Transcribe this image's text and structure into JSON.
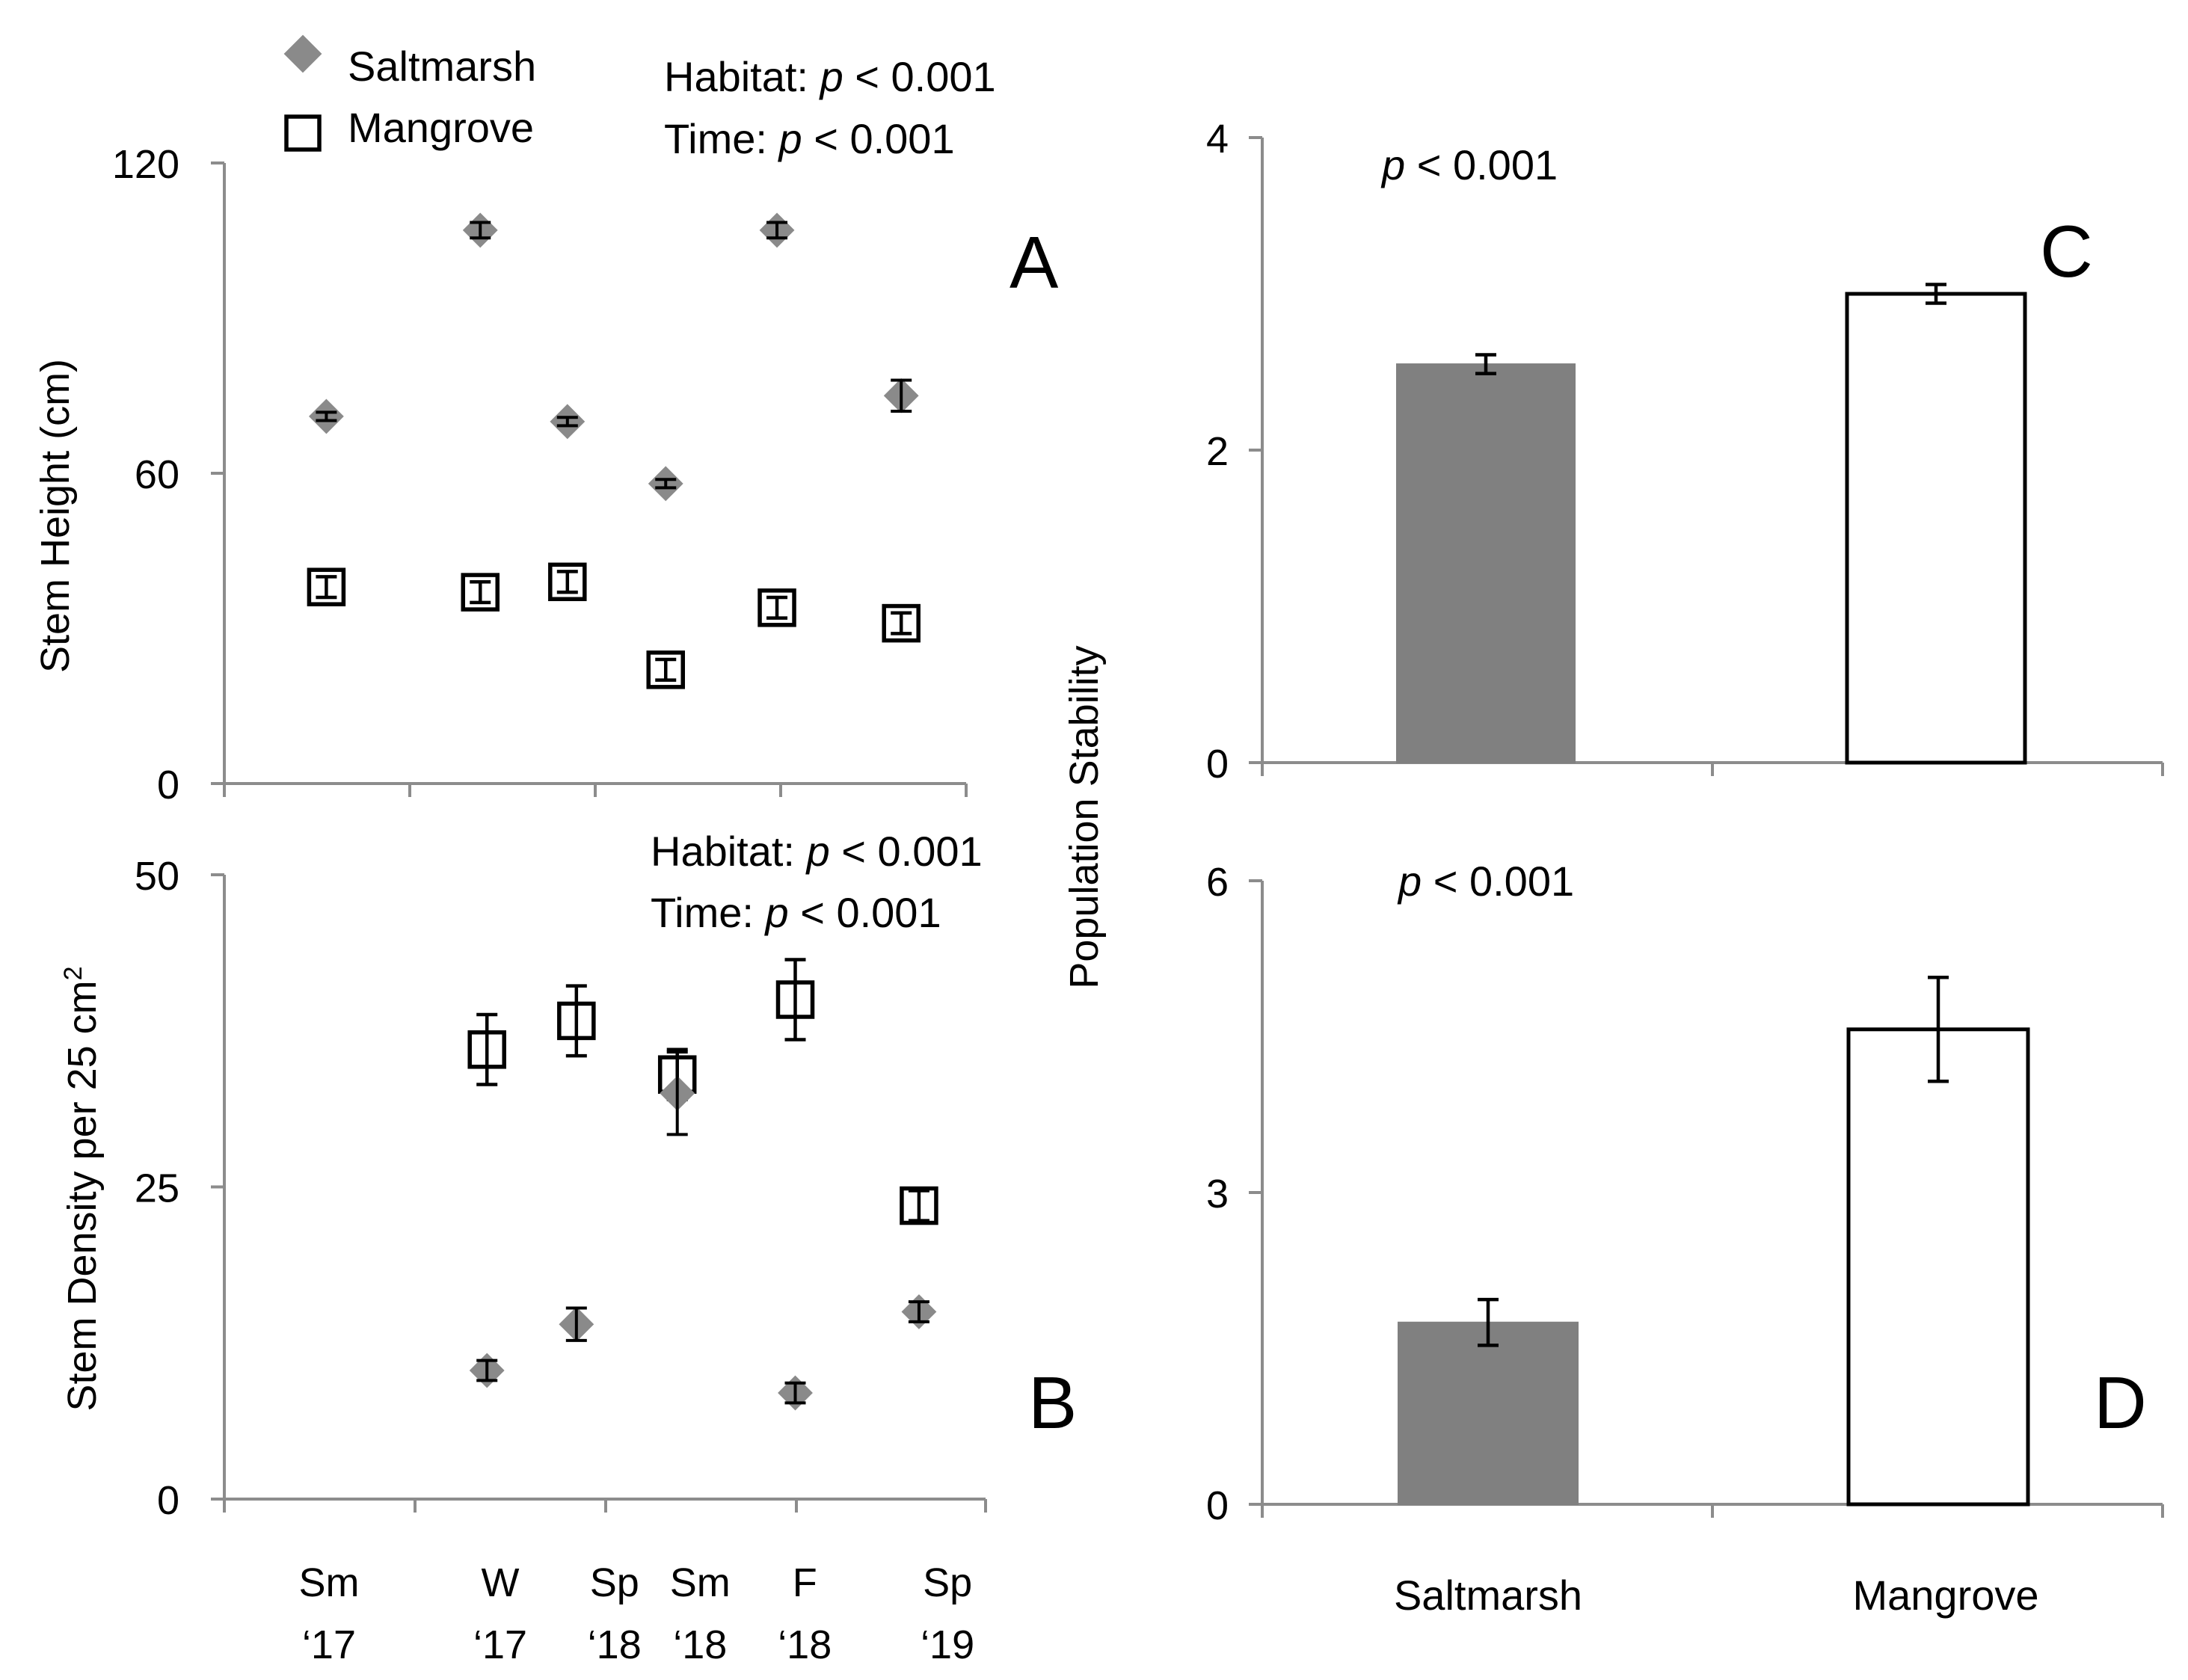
{
  "chart_data": [
    {
      "panel": "A",
      "type": "scatter",
      "ylabel": "Stem Height (cm)",
      "ylim": [
        0,
        120
      ],
      "yticks": [
        0,
        60,
        120
      ],
      "stats": {
        "habitat_label": "Habitat: ",
        "habitat_p": "p",
        "habitat_value": " < 0.001",
        "time_label": "Time: ",
        "time_p": "p",
        "time_value": " < 0.001"
      },
      "series": [
        {
          "name": "Saltmarsh",
          "marker": "diamond",
          "color": "#8a8a8a",
          "x": [
            0.55,
            1.38,
            1.85,
            2.38,
            2.98,
            3.65
          ],
          "values": [
            71,
            107,
            70,
            58,
            107,
            75
          ],
          "err": [
            0.8,
            1.5,
            0.8,
            0.8,
            1.5,
            3
          ]
        },
        {
          "name": "Mangrove",
          "marker": "square",
          "color": "#ffffff",
          "x": [
            0.55,
            1.38,
            1.85,
            2.38,
            2.98,
            3.65
          ],
          "values": [
            38,
            37,
            39,
            22,
            34,
            31
          ],
          "err": [
            2,
            2,
            2,
            2,
            2,
            2
          ]
        }
      ]
    },
    {
      "panel": "B",
      "type": "scatter",
      "ylabel": "Stem Density per 25 cm",
      "ylabel_sup": "2",
      "ylim": [
        0,
        50
      ],
      "yticks": [
        0,
        25,
        50
      ],
      "stats": {
        "habitat_label": "Habitat: ",
        "habitat_p": "p",
        "habitat_value": " < 0.001",
        "time_label": "Time: ",
        "time_p": "p",
        "time_value": " < 0.001"
      },
      "series": [
        {
          "name": "Saltmarsh",
          "marker": "diamond",
          "color": "#8a8a8a",
          "x": [
            1.38,
            1.85,
            2.38,
            3.0,
            3.65
          ],
          "values": [
            10.3,
            14,
            32.5,
            8.5,
            15
          ],
          "err": [
            0.8,
            1.3,
            3.3,
            0.8,
            0.8
          ]
        },
        {
          "name": "Mangrove",
          "marker": "square",
          "color": "#ffffff",
          "x": [
            1.38,
            1.85,
            2.38,
            3.0,
            3.65
          ],
          "values": [
            36,
            38.3,
            34,
            40,
            23.5
          ],
          "err": [
            2.8,
            2.8,
            2,
            3.2,
            1.2
          ]
        }
      ],
      "categories": [
        {
          "x": 0.55,
          "line1": "Sm",
          "line2": "‘17"
        },
        {
          "x": 1.45,
          "line1": "W",
          "line2": "‘17"
        },
        {
          "x": 2.05,
          "line1": "Sp",
          "line2": "‘18"
        },
        {
          "x": 2.5,
          "line1": "Sm",
          "line2": "‘18"
        },
        {
          "x": 3.05,
          "line1": "F",
          "line2": "‘18"
        },
        {
          "x": 3.8,
          "line1": "Sp",
          "line2": "‘19"
        }
      ]
    },
    {
      "panel": "C",
      "type": "bar",
      "ylabel": "Population Stability",
      "ylim": [
        0,
        4
      ],
      "yticks": [
        0,
        2,
        4
      ],
      "stat": {
        "p": "p",
        "value": " < 0.001"
      },
      "categories": [
        "Saltmarsh",
        "Mangrove"
      ],
      "values": [
        2.55,
        3.0
      ],
      "err": [
        0.06,
        0.06
      ],
      "colors": [
        "#808080",
        "#ffffff"
      ]
    },
    {
      "panel": "D",
      "type": "bar",
      "ylim": [
        0,
        6
      ],
      "yticks": [
        0,
        3,
        6
      ],
      "stat": {
        "p": "p",
        "value": " < 0.001"
      },
      "categories": [
        "Saltmarsh",
        "Mangrove"
      ],
      "values": [
        1.75,
        4.57
      ],
      "err": [
        0.22,
        0.5
      ],
      "colors": [
        "#808080",
        "#ffffff"
      ]
    }
  ],
  "legend": [
    {
      "name": "Saltmarsh",
      "marker": "diamond"
    },
    {
      "name": "Mangrove",
      "marker": "square"
    }
  ],
  "panel_letters": [
    "A",
    "B",
    "C",
    "D"
  ]
}
